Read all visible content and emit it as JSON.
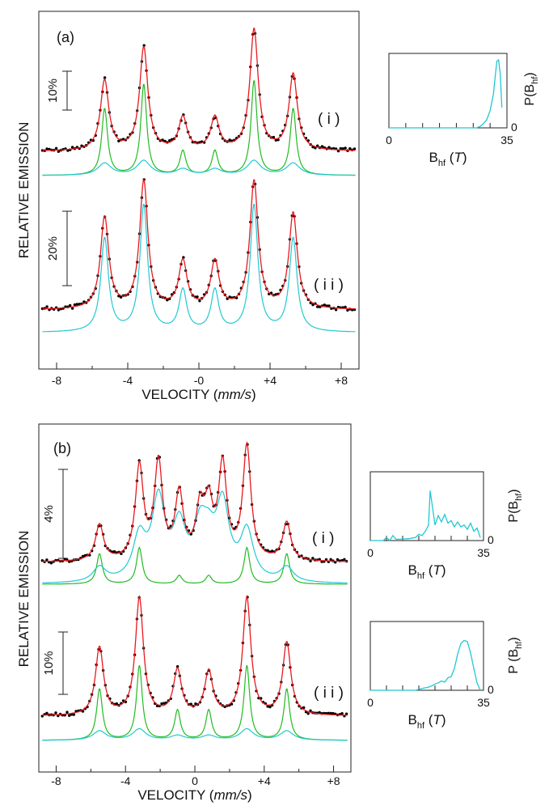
{
  "colors": {
    "experimental": "#000000",
    "fit": "#e8191e",
    "component_green": "#22bb22",
    "component_cyan": "#22c8d2",
    "frame": "#222222"
  },
  "chart_data": [
    {
      "type": "line",
      "panel_label": "(a)",
      "ylabel": "RELATIVE EMISSION",
      "xlabel_main": "VELOCITY (",
      "xlabel_unit": "mm/s",
      "xlabel_end": ")",
      "xlim": [
        -9,
        9
      ],
      "x_ticks": [
        -8,
        -4,
        0,
        4,
        8
      ],
      "x_tick_labels": [
        "-8",
        "-4",
        "-0",
        "+4",
        "+8"
      ],
      "scale_bars": [
        {
          "label": "10%",
          "spectrum": "i"
        },
        {
          "label": "20%",
          "spectrum": "ii"
        }
      ],
      "spectra": [
        {
          "label": "( i )",
          "series": [
            "data points",
            "total fit",
            "sextet component",
            "distribution component"
          ],
          "peaks": [
            {
              "position": -5.3,
              "fit": 0.58,
              "sextet": 0.55,
              "dist": 0.1
            },
            {
              "position": -3.1,
              "fit": 0.85,
              "sextet": 0.75,
              "dist": 0.12
            },
            {
              "position": -0.9,
              "fit": 0.27,
              "sextet": 0.2,
              "dist": 0.05
            },
            {
              "position": 0.9,
              "fit": 0.27,
              "sextet": 0.2,
              "dist": 0.05
            },
            {
              "position": 3.1,
              "fit": 1.0,
              "sextet": 0.78,
              "dist": 0.12
            },
            {
              "position": 5.3,
              "fit": 0.63,
              "sextet": 0.55,
              "dist": 0.1
            }
          ]
        },
        {
          "label": "( i i )",
          "series": [
            "data points",
            "total fit",
            "distribution component"
          ],
          "peaks": [
            {
              "position": -5.3,
              "fit": 0.72,
              "dist": 0.68
            },
            {
              "position": -3.1,
              "fit": 1.0,
              "dist": 0.92
            },
            {
              "position": -0.9,
              "fit": 0.37,
              "dist": 0.3
            },
            {
              "position": 0.9,
              "fit": 0.37,
              "dist": 0.3
            },
            {
              "position": 3.1,
              "fit": 1.0,
              "dist": 0.92
            },
            {
              "position": 5.3,
              "fit": 0.75,
              "dist": 0.68
            }
          ]
        }
      ],
      "distributions": [
        {
          "spectrum": "i",
          "xlabel": "B",
          "xlabel_sub": "hf",
          "xlabel_unit": "T",
          "ylabel": "P(B",
          "ylabel_sub": "hf",
          "ylabel_end": ")",
          "xlim": [
            0,
            35
          ],
          "x_tick_labels": [
            "0",
            "35"
          ],
          "y_tick_label": "0",
          "x": [
            0,
            26,
            27,
            28,
            29,
            30,
            31,
            31.5,
            32,
            32.5,
            33,
            33.5
          ],
          "values": [
            0,
            0,
            0.02,
            0.06,
            0.12,
            0.25,
            0.5,
            0.75,
            0.98,
            1.0,
            0.8,
            0.3
          ]
        }
      ]
    },
    {
      "type": "line",
      "panel_label": "(b)",
      "ylabel": "RELATIVE EMISSION",
      "xlabel_main": "VELOCITY (",
      "xlabel_unit": "mm/s",
      "xlabel_end": ")",
      "xlim": [
        -9,
        9
      ],
      "x_ticks": [
        -8,
        -4,
        0,
        4,
        8
      ],
      "x_tick_labels": [
        "-8",
        "-4",
        "0",
        "+4",
        "+8"
      ],
      "scale_bars": [
        {
          "label": "4%",
          "spectrum": "i"
        },
        {
          "label": "10%",
          "spectrum": "ii"
        }
      ],
      "spectra": [
        {
          "label": "( i )",
          "series": [
            "data points",
            "total fit",
            "sextet component",
            "distribution component"
          ],
          "peaks": [
            {
              "position": -5.5,
              "fit": 0.32,
              "sextet": 0.25,
              "dist": 0.12
            },
            {
              "position": -3.2,
              "fit": 0.82,
              "sextet": 0.3,
              "dist": 0.35
            },
            {
              "position": -2.1,
              "fit": 0.85,
              "sextet": 0.0,
              "dist": 0.65
            },
            {
              "position": -0.9,
              "fit": 0.57,
              "sextet": 0.07,
              "dist": 0.42
            },
            {
              "position": 0.3,
              "fit": 0.42,
              "sextet": 0.0,
              "dist": 0.37
            },
            {
              "position": 0.8,
              "fit": 0.45,
              "sextet": 0.07,
              "dist": 0.25
            },
            {
              "position": 1.6,
              "fit": 0.82,
              "sextet": 0.0,
              "dist": 0.6
            },
            {
              "position": 3.0,
              "fit": 1.0,
              "sextet": 0.3,
              "dist": 0.4
            },
            {
              "position": 5.3,
              "fit": 0.34,
              "sextet": 0.25,
              "dist": 0.12
            }
          ]
        },
        {
          "label": "( i i )",
          "series": [
            "data points",
            "total fit",
            "sextet component",
            "distribution component"
          ],
          "peaks": [
            {
              "position": -5.5,
              "fit": 0.58,
              "sextet": 0.55,
              "dist": 0.1
            },
            {
              "position": -3.2,
              "fit": 1.0,
              "sextet": 0.8,
              "dist": 0.12
            },
            {
              "position": -1.0,
              "fit": 0.38,
              "sextet": 0.32,
              "dist": 0.05
            },
            {
              "position": 0.8,
              "fit": 0.37,
              "sextet": 0.32,
              "dist": 0.05
            },
            {
              "position": 3.0,
              "fit": 1.0,
              "sextet": 0.8,
              "dist": 0.12
            },
            {
              "position": 5.3,
              "fit": 0.62,
              "sextet": 0.55,
              "dist": 0.1
            }
          ]
        }
      ],
      "distributions": [
        {
          "spectrum": "i",
          "xlabel": "B",
          "xlabel_sub": "hf",
          "xlabel_unit": "T",
          "ylabel": "P(B",
          "ylabel_sub": "hf",
          "ylabel_end": ")",
          "xlim": [
            0,
            35
          ],
          "x_tick_labels": [
            "0",
            "35"
          ],
          "y_tick_label": "0",
          "x": [
            0,
            4,
            5,
            6,
            7,
            8,
            12,
            14,
            15,
            16,
            17,
            18,
            18.5,
            19,
            20,
            21,
            22,
            23,
            24,
            25,
            26,
            27,
            28,
            29,
            30,
            31,
            32,
            33,
            34
          ],
          "values": [
            0,
            0,
            0.05,
            0.0,
            0.08,
            0.02,
            0.03,
            0.05,
            0.1,
            0.08,
            0.15,
            0.25,
            0.8,
            0.62,
            0.25,
            0.4,
            0.3,
            0.42,
            0.28,
            0.32,
            0.22,
            0.3,
            0.22,
            0.25,
            0.18,
            0.28,
            0.15,
            0.2,
            0.05
          ]
        },
        {
          "spectrum": "ii",
          "xlabel": "B",
          "xlabel_sub": "hf",
          "xlabel_unit": "T",
          "ylabel": "P (B",
          "ylabel_sub": "hf",
          "ylabel_end": ")",
          "xlim": [
            0,
            35
          ],
          "x_tick_labels": [
            "0",
            "35"
          ],
          "y_tick_label": "0",
          "x": [
            0,
            14,
            16,
            18,
            19,
            20,
            21,
            22,
            23,
            24,
            25,
            26,
            27,
            28,
            29,
            30,
            31,
            32,
            33,
            34
          ],
          "values": [
            0,
            0,
            0.03,
            0.05,
            0.07,
            0.1,
            0.12,
            0.15,
            0.13,
            0.2,
            0.22,
            0.35,
            0.58,
            0.75,
            0.8,
            0.78,
            0.6,
            0.35,
            0.12,
            0.0
          ]
        }
      ]
    }
  ]
}
